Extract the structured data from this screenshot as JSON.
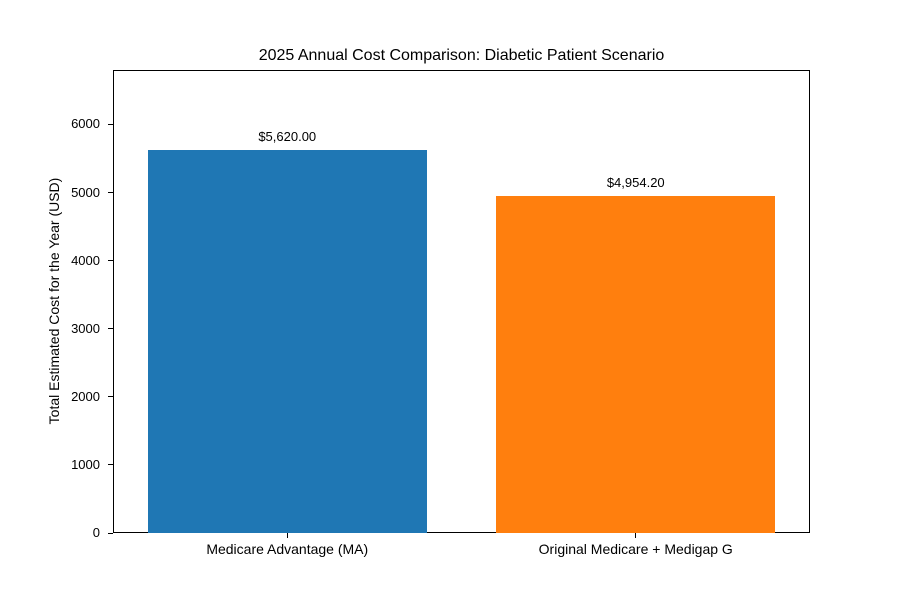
{
  "chart_data": {
    "type": "bar",
    "title": "2025 Annual Cost Comparison: Diabetic Patient Scenario",
    "xlabel": "",
    "ylabel": "Total Estimated Cost for the Year (USD)",
    "categories": [
      "Medicare Advantage (MA)",
      "Original Medicare + Medigap G"
    ],
    "values": [
      5620.0,
      4954.2
    ],
    "value_labels": [
      "$5,620.00",
      "$4,954.20"
    ],
    "bar_colors": [
      "#1f77b4",
      "#ff7f0e"
    ],
    "ylim": [
      0,
      6800
    ],
    "yticks": [
      0,
      1000,
      2000,
      3000,
      4000,
      5000,
      6000
    ],
    "ytick_labels": [
      "0",
      "1000",
      "2000",
      "3000",
      "4000",
      "5000",
      "6000"
    ],
    "grid": false,
    "legend_position": "none",
    "background_color": "#ffffff",
    "spine_color": "#000000",
    "text_color": "#000000"
  }
}
